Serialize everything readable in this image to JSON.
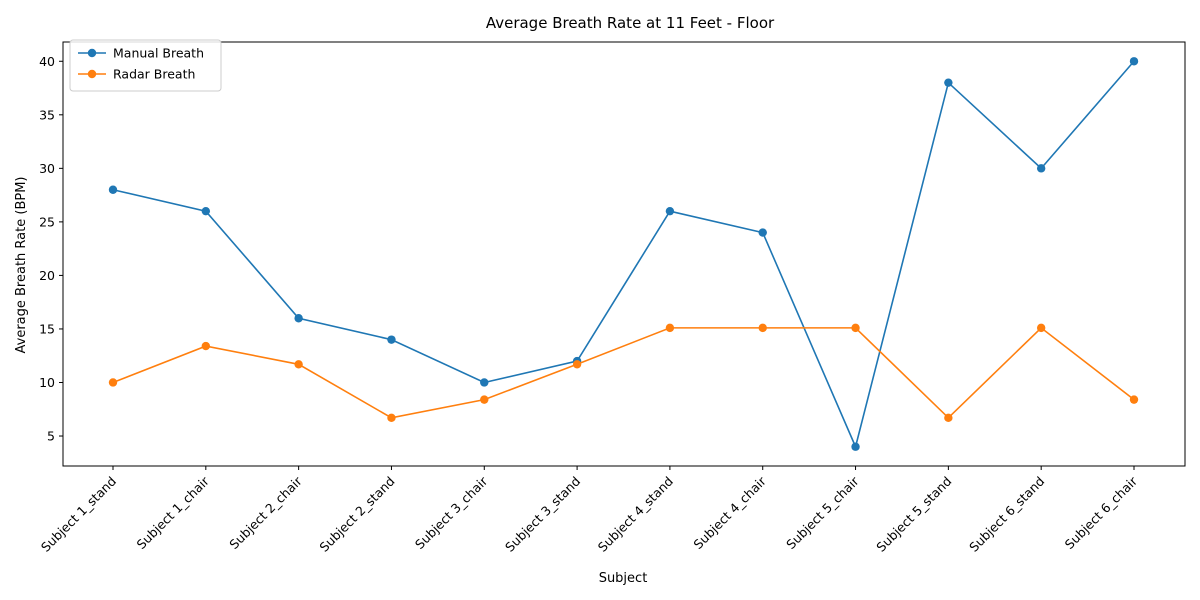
{
  "chart_data": {
    "type": "line",
    "title": "Average Breath Rate at 11 Feet - Floor",
    "xlabel": "Subject",
    "ylabel": "Average Breath Rate (BPM)",
    "categories": [
      "Subject 1_stand",
      "Subject 1_chair",
      "Subject 2_chair",
      "Subject 2_stand",
      "Subject 3_chair",
      "Subject 3_stand",
      "Subject 4_stand",
      "Subject 4_chair",
      "Subject 5_chair",
      "Subject 5_stand",
      "Subject 6_stand",
      "Subject 6_chair"
    ],
    "ylim": [
      2.2,
      41.8
    ],
    "yticks": [
      5,
      10,
      15,
      20,
      25,
      30,
      35,
      40
    ],
    "grid": false,
    "legend_position": "top-left",
    "series": [
      {
        "name": "Manual Breath",
        "color": "#1f77b4",
        "marker": "circle",
        "values": [
          28,
          26,
          16,
          14,
          10,
          12,
          26,
          24,
          4,
          38,
          30,
          40
        ]
      },
      {
        "name": "Radar Breath",
        "color": "#ff7f0e",
        "marker": "circle",
        "values": [
          10,
          13.4,
          11.7,
          6.7,
          8.4,
          11.7,
          15.1,
          15.1,
          15.1,
          6.7,
          15.1,
          8.4
        ]
      }
    ]
  }
}
